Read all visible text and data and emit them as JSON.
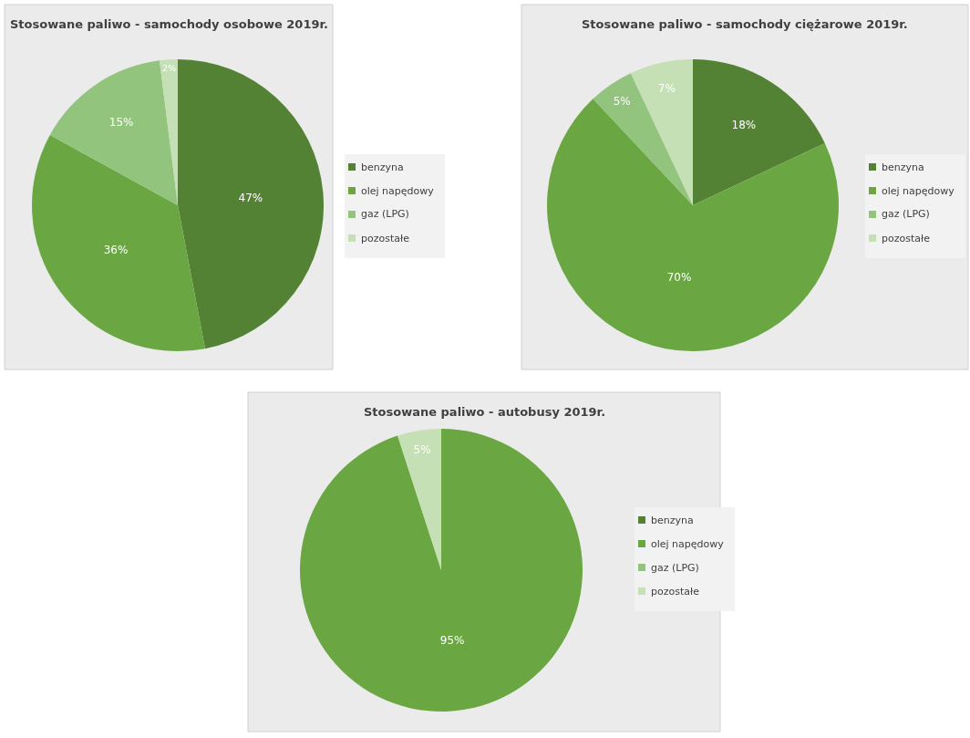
{
  "chart_data": [
    {
      "type": "pie",
      "title": "Stosowane paliwo - samochody osobowe 2019r.",
      "categories": [
        "benzyna",
        "olej napędowy",
        "gaz (LPG)",
        "pozostałe"
      ],
      "values": [
        47,
        36,
        15,
        2
      ],
      "value_labels": [
        "47%",
        "36%",
        "15%",
        "2%"
      ],
      "colors": [
        "#548235",
        "#6aa743",
        "#93c47d",
        "#c5e0b4"
      ],
      "legend": "right"
    },
    {
      "type": "pie",
      "title": "Stosowane paliwo - samochody ciężarowe 2019r.",
      "categories": [
        "benzyna",
        "olej napędowy",
        "gaz (LPG)",
        "pozostałe"
      ],
      "values": [
        18,
        70,
        5,
        7
      ],
      "value_labels": [
        "18%",
        "70%",
        "5%",
        "7%"
      ],
      "colors": [
        "#548235",
        "#6aa743",
        "#93c47d",
        "#c5e0b4"
      ],
      "legend": "right"
    },
    {
      "type": "pie",
      "title": "Stosowane paliwo - autobusy 2019r.",
      "categories": [
        "benzyna",
        "olej napędowy",
        "gaz (LPG)",
        "pozostałe"
      ],
      "values": [
        0,
        95,
        0,
        5
      ],
      "value_labels": [
        null,
        "95%",
        null,
        "5%"
      ],
      "colors": [
        "#548235",
        "#6aa743",
        "#93c47d",
        "#c5e0b4"
      ],
      "legend": "right"
    }
  ]
}
